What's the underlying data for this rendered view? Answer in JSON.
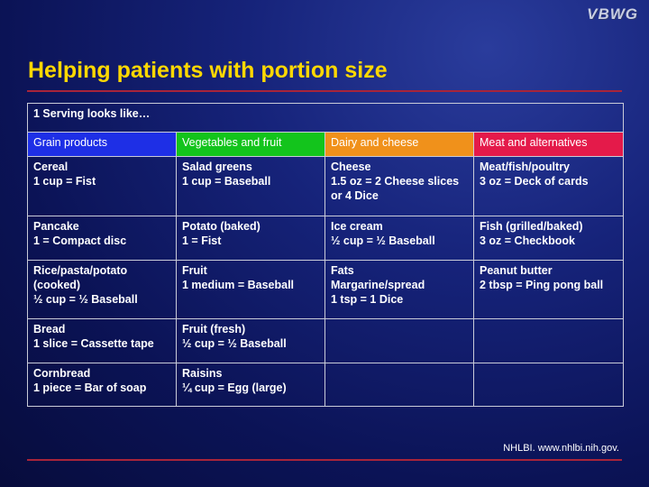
{
  "logo": "VBWG",
  "title": "Helping patients with portion size",
  "table": {
    "caption": "1 Serving looks like…",
    "headers": [
      "Grain products",
      "Vegetables and fruit",
      "Dairy and cheese",
      "Meat and alternatives"
    ],
    "header_colors": [
      "#1e2fe6",
      "#13c41c",
      "#f0911b",
      "#e41a4a"
    ],
    "rows": [
      [
        "Cereal\n1 cup = Fist",
        "Salad greens\n1 cup = Baseball",
        "Cheese\n1.5 oz = 2 Cheese slices or 4 Dice",
        "Meat/fish/poultry\n3 oz = Deck of cards"
      ],
      [
        "Pancake\n1 = Compact disc",
        "Potato (baked)\n1 = Fist",
        "Ice cream\n½ cup = ½ Baseball",
        "Fish (grilled/baked)\n3 oz = Checkbook"
      ],
      [
        "Rice/pasta/potato (cooked)\n½ cup = ½ Baseball",
        "Fruit\n1 medium = Baseball",
        "Fats\nMargarine/spread\n1 tsp = 1 Dice",
        "Peanut butter\n2 tbsp = Ping pong ball"
      ],
      [
        "Bread\n1 slice = Cassette tape",
        "Fruit (fresh)\n½ cup = ½ Baseball",
        "",
        ""
      ],
      [
        "Cornbread\n1 piece = Bar of soap",
        "Raisins\n¼ cup = Egg (large)",
        "",
        ""
      ]
    ]
  },
  "source": "NHLBI. www.nhlbi.nih.gov."
}
